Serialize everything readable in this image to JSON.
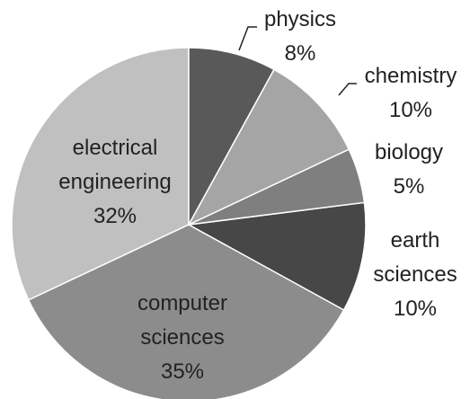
{
  "chart_data": {
    "type": "pie",
    "categories": [
      "physics",
      "chemistry",
      "biology",
      "earth sciences",
      "computer sciences",
      "electrical engineering"
    ],
    "values": [
      8,
      10,
      5,
      10,
      35,
      32
    ],
    "value_labels": [
      "8%",
      "10%",
      "5%",
      "10%",
      "35%",
      "32%"
    ],
    "colors": [
      "#595959",
      "#a5a5a5",
      "#7f7f7f",
      "#474747",
      "#8c8c8c",
      "#c0c0c0"
    ]
  }
}
